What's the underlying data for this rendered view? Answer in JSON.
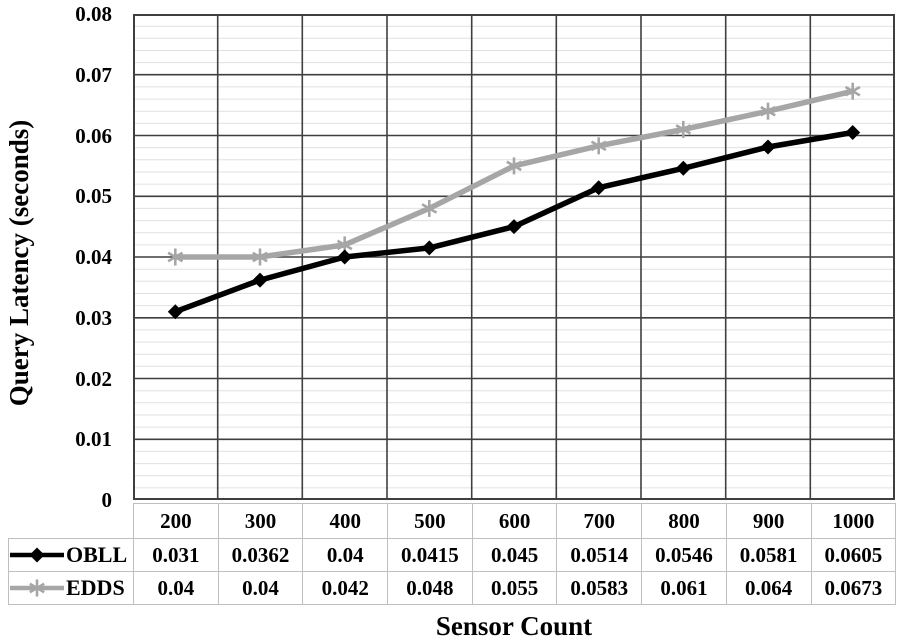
{
  "chart_data": {
    "type": "line",
    "title": "",
    "xlabel": "Sensor Count",
    "ylabel": "Query Latency (seconds)",
    "categories": [
      "200",
      "300",
      "400",
      "500",
      "600",
      "700",
      "800",
      "900",
      "1000"
    ],
    "series": [
      {
        "name": "OBLL",
        "color": "#000000",
        "marker": "diamond",
        "values": [
          0.031,
          0.0362,
          0.04,
          0.0415,
          0.045,
          0.0514,
          0.0546,
          0.0581,
          0.0605
        ]
      },
      {
        "name": "EDDS",
        "color": "#a6a6a6",
        "marker": "asterisk",
        "values": [
          0.04,
          0.04,
          0.042,
          0.048,
          0.055,
          0.0583,
          0.061,
          0.064,
          0.0673
        ]
      }
    ],
    "ylim": [
      0,
      0.08
    ],
    "y_major_unit": 0.01,
    "y_minor_unit": 0.002,
    "y_ticks": [
      "0.08",
      "0.07",
      "0.06",
      "0.05",
      "0.04",
      "0.03",
      "0.02",
      "0.01",
      "0"
    ],
    "grid": true,
    "legend_position": "table-left",
    "colors": {
      "major_grid": "#3f3f3f",
      "minor_grid": "#e0e0e0",
      "plot_border": "#3f3f3f",
      "table_border": "#bfbfbf",
      "background": "#ffffff"
    }
  }
}
